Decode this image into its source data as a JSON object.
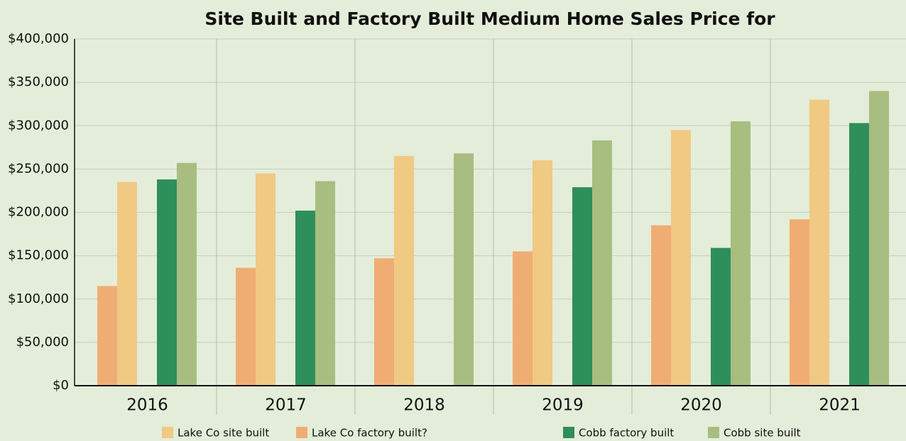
{
  "chart_data": {
    "type": "bar",
    "title": "Site Built and Factory Built Medium Home Sales Price for",
    "categories": [
      "2016",
      "2017",
      "2018",
      "2019",
      "2020",
      "2021"
    ],
    "series": [
      {
        "name": "Lake Co site built",
        "color": "#f0c983",
        "values": [
          235000,
          245000,
          265000,
          260000,
          295000,
          330000
        ]
      },
      {
        "name": "Lake Co factory built?",
        "color": "#f0ad73",
        "values": [
          115000,
          136000,
          147000,
          155000,
          185000,
          192000
        ]
      },
      {
        "name": "Cobb factory built",
        "color": "#2e8f5b",
        "values": [
          238000,
          202000,
          null,
          229000,
          159000,
          303000
        ]
      },
      {
        "name": "Cobb site built",
        "color": "#a8bd80",
        "values": [
          257000,
          236000,
          268000,
          283000,
          305000,
          340000
        ]
      }
    ],
    "ylim": [
      0,
      400000
    ],
    "yticks": [
      {
        "value": 0,
        "label": "$0"
      },
      {
        "value": 50000,
        "label": "$50,000"
      },
      {
        "value": 100000,
        "label": "$100,000"
      },
      {
        "value": 150000,
        "label": "$150,000"
      },
      {
        "value": 200000,
        "label": "$200,000"
      },
      {
        "value": 250000,
        "label": "$250,000"
      },
      {
        "value": 300000,
        "label": "$300,000"
      },
      {
        "value": 350000,
        "label": "$350,000"
      },
      {
        "value": 400000,
        "label": "$400,000"
      }
    ],
    "grid": true,
    "legend": "bottom"
  }
}
